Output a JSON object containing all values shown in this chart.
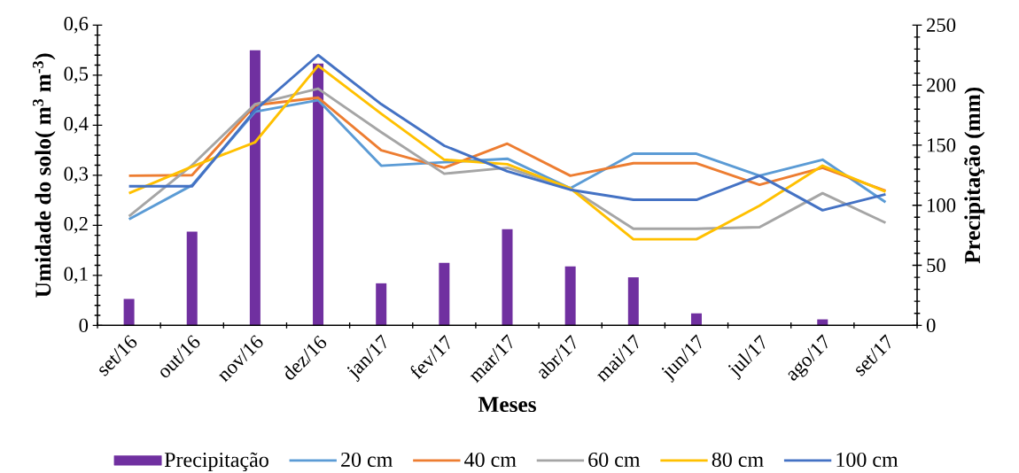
{
  "chart_data": {
    "type": "line",
    "xlabel": "Meses",
    "ylabel": "Umidade do solo( m$^{3}$ m$^{-3}$)",
    "y2label": "Precipitação (mm)",
    "categories": [
      "set/16",
      "out/16",
      "nov/16",
      "dez/16",
      "jan/17",
      "fev/17",
      "mar/17",
      "abr/17",
      "mai/17",
      "jun/17",
      "jul/17",
      "ago/17",
      "set/17"
    ],
    "series": [
      {
        "name": "Precipitação",
        "type": "bar",
        "axis": "y2",
        "color": "#7030a0",
        "values": [
          22,
          78,
          229,
          218,
          35,
          52,
          80,
          49,
          40,
          10,
          0,
          5,
          0
        ]
      },
      {
        "name": "20 cm",
        "color": "#5b9bd5",
        "values": [
          0.212,
          0.28,
          0.427,
          0.45,
          0.319,
          0.326,
          0.333,
          0.274,
          0.343,
          0.343,
          0.299,
          0.331,
          0.246
        ]
      },
      {
        "name": "40 cm",
        "color": "#ed7d31",
        "values": [
          0.299,
          0.3,
          0.44,
          0.455,
          0.35,
          0.315,
          0.363,
          0.299,
          0.324,
          0.324,
          0.281,
          0.315,
          0.269
        ]
      },
      {
        "name": "60 cm",
        "color": "#a5a5a5",
        "values": [
          0.218,
          0.32,
          0.442,
          0.473,
          0.386,
          0.303,
          0.315,
          0.274,
          0.193,
          0.193,
          0.196,
          0.264,
          0.205
        ]
      },
      {
        "name": "80 cm",
        "color": "#ffc000",
        "values": [
          0.264,
          0.317,
          0.366,
          0.519,
          0.423,
          0.331,
          0.322,
          0.274,
          0.172,
          0.172,
          0.239,
          0.319,
          0.267
        ]
      },
      {
        "name": "100 cm",
        "color": "#4472c4",
        "values": [
          0.278,
          0.278,
          0.43,
          0.54,
          0.442,
          0.359,
          0.308,
          0.271,
          0.251,
          0.251,
          0.299,
          0.23,
          0.262
        ]
      }
    ],
    "ylim": [
      0,
      0.6
    ],
    "yticks": [
      0,
      {
        "value": 0.1,
        "label": "0,1"
      },
      {
        "value": 0.2,
        "label": "0,2"
      },
      {
        "value": 0.3,
        "label": "0,3"
      },
      {
        "value": 0.4,
        "label": "0,4"
      },
      {
        "value": 0.5,
        "label": "0,5"
      },
      {
        "value": 0.6,
        "label": "0,6"
      }
    ],
    "y2lim": [
      0,
      250
    ],
    "y2ticks": [
      0,
      50,
      100,
      150,
      200,
      250
    ],
    "legend": "bottom"
  }
}
